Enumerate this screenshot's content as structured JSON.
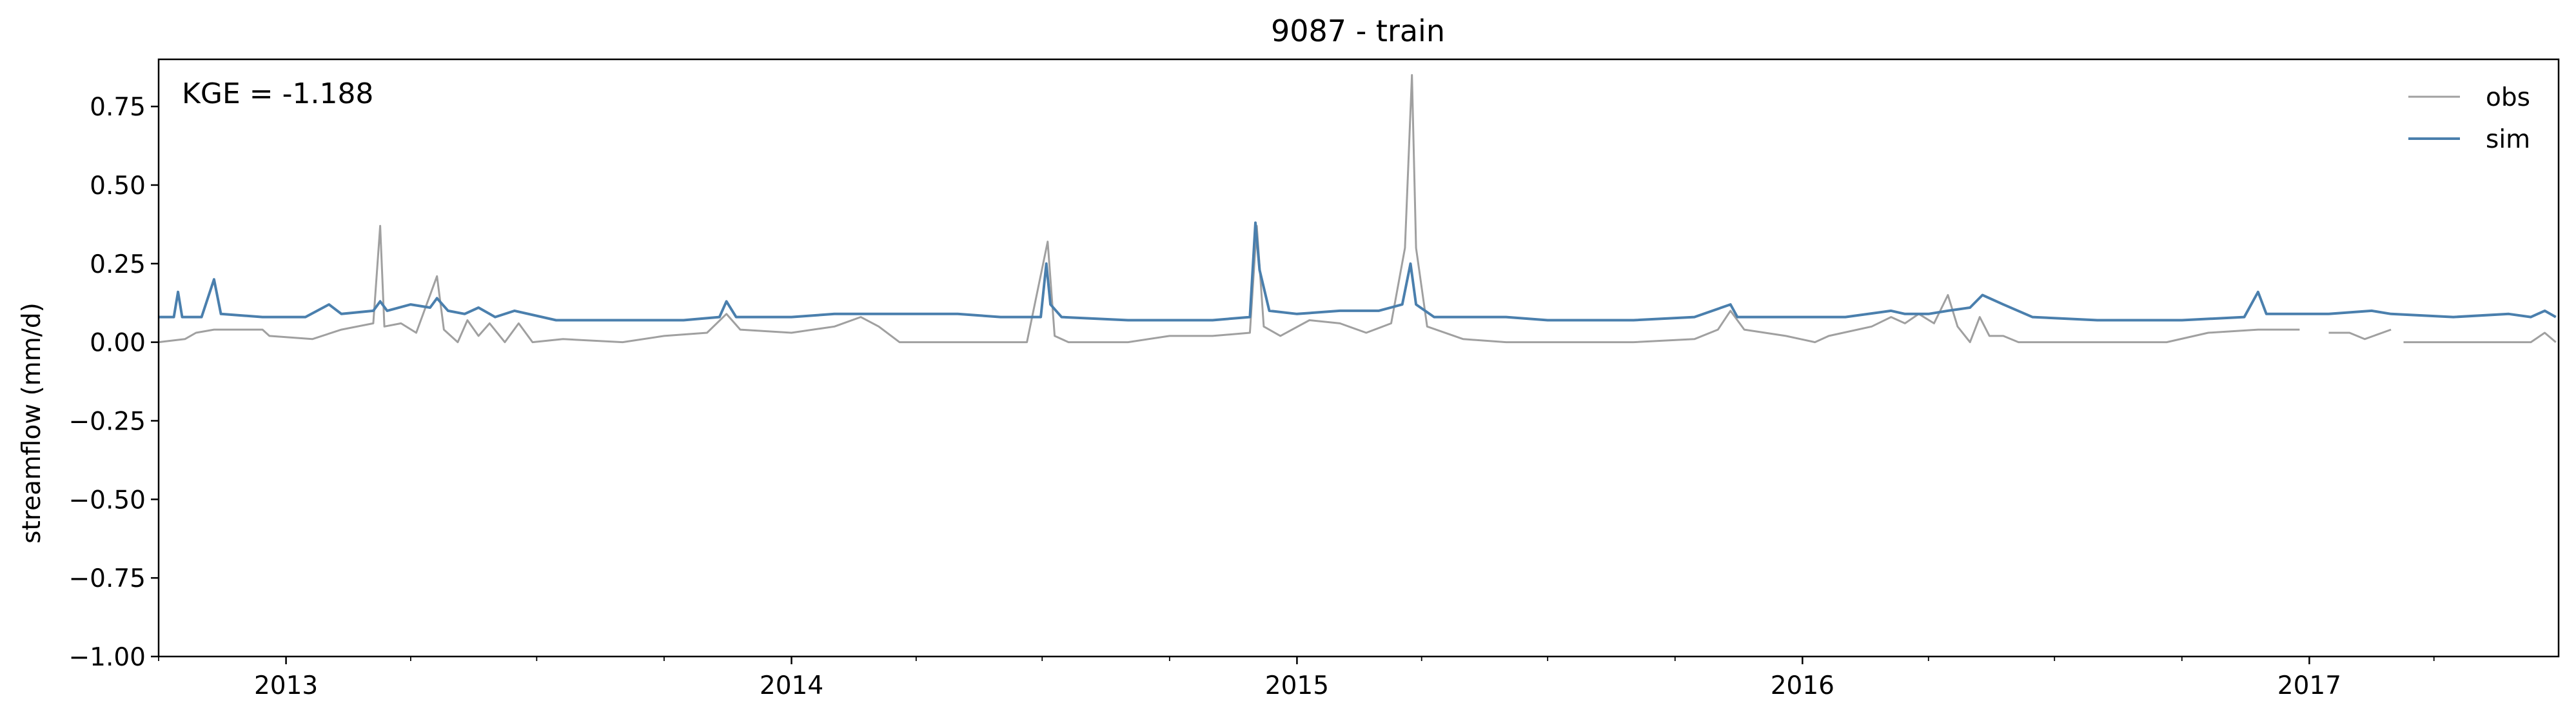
{
  "chart_data": {
    "type": "line",
    "title": "9087 - train",
    "ylabel": "streamflow (mm/d)",
    "xlabel": "",
    "annotation": "KGE = -1.188",
    "xlim": [
      "2012-10-01",
      "2017-06-30"
    ],
    "ylim": [
      -1.0,
      0.9
    ],
    "yticks": [
      -1.0,
      -0.75,
      -0.5,
      -0.25,
      0.0,
      0.25,
      0.5,
      0.75
    ],
    "ytick_labels": [
      "−1.00",
      "−0.75",
      "−0.50",
      "−0.25",
      "0.00",
      "0.25",
      "0.50",
      "0.75"
    ],
    "xticks_major": [
      "2013-01-01",
      "2014-01-01",
      "2015-01-01",
      "2016-01-01",
      "2017-01-01"
    ],
    "xtick_labels": [
      "2013",
      "2014",
      "2015",
      "2016",
      "2017"
    ],
    "grid": false,
    "legend_position": "top-right",
    "series": [
      {
        "name": "obs",
        "color": "#a0a0a0",
        "points": [
          [
            "2012-10-01",
            0.0
          ],
          [
            "2012-10-20",
            0.01
          ],
          [
            "2012-10-28",
            0.03
          ],
          [
            "2012-11-10",
            0.04
          ],
          [
            "2012-12-15",
            0.04
          ],
          [
            "2012-12-20",
            0.02
          ],
          [
            "2013-01-20",
            0.01
          ],
          [
            "2013-02-10",
            0.04
          ],
          [
            "2013-03-05",
            0.06
          ],
          [
            "2013-03-10",
            0.37
          ],
          [
            "2013-03-13",
            0.05
          ],
          [
            "2013-03-25",
            0.06
          ],
          [
            "2013-04-05",
            0.03
          ],
          [
            "2013-04-20",
            0.21
          ],
          [
            "2013-04-25",
            0.04
          ],
          [
            "2013-05-05",
            0.0
          ],
          [
            "2013-05-12",
            0.07
          ],
          [
            "2013-05-20",
            0.02
          ],
          [
            "2013-05-28",
            0.06
          ],
          [
            "2013-06-08",
            0.0
          ],
          [
            "2013-06-18",
            0.06
          ],
          [
            "2013-06-28",
            0.0
          ],
          [
            "2013-07-20",
            0.01
          ],
          [
            "2013-09-01",
            0.0
          ],
          [
            "2013-10-01",
            0.02
          ],
          [
            "2013-11-01",
            0.03
          ],
          [
            "2013-11-15",
            0.09
          ],
          [
            "2013-11-25",
            0.04
          ],
          [
            "2014-01-01",
            0.03
          ],
          [
            "2014-02-01",
            0.05
          ],
          [
            "2014-02-20",
            0.08
          ],
          [
            "2014-03-05",
            0.05
          ],
          [
            "2014-03-20",
            0.0
          ],
          [
            "2014-04-15",
            0.0
          ],
          [
            "2014-05-15",
            0.0
          ],
          [
            "2014-06-20",
            0.0
          ],
          [
            "2014-07-05",
            0.32
          ],
          [
            "2014-07-10",
            0.02
          ],
          [
            "2014-07-20",
            0.0
          ],
          [
            "2014-09-01",
            0.0
          ],
          [
            "2014-10-01",
            0.02
          ],
          [
            "2014-11-01",
            0.02
          ],
          [
            "2014-11-28",
            0.03
          ],
          [
            "2014-12-03",
            0.37
          ],
          [
            "2014-12-08",
            0.05
          ],
          [
            "2014-12-20",
            0.02
          ],
          [
            "2015-01-10",
            0.07
          ],
          [
            "2015-02-01",
            0.06
          ],
          [
            "2015-02-20",
            0.03
          ],
          [
            "2015-03-10",
            0.06
          ],
          [
            "2015-03-20",
            0.3
          ],
          [
            "2015-03-25",
            0.85
          ],
          [
            "2015-03-28",
            0.3
          ],
          [
            "2015-04-05",
            0.05
          ],
          [
            "2015-05-01",
            0.01
          ],
          [
            "2015-06-01",
            0.0
          ],
          [
            "2015-07-01",
            0.0
          ],
          [
            "2015-08-01",
            0.0
          ],
          [
            "2015-09-01",
            0.0
          ],
          [
            "2015-10-15",
            0.01
          ],
          [
            "2015-11-01",
            0.04
          ],
          [
            "2015-11-10",
            0.1
          ],
          [
            "2015-11-20",
            0.04
          ],
          [
            "2015-12-20",
            0.02
          ],
          [
            "2016-01-10",
            0.0
          ],
          [
            "2016-01-20",
            0.02
          ],
          [
            "2016-02-20",
            0.05
          ],
          [
            "2016-03-05",
            0.08
          ],
          [
            "2016-03-15",
            0.06
          ],
          [
            "2016-03-25",
            0.09
          ],
          [
            "2016-04-05",
            0.06
          ],
          [
            "2016-04-15",
            0.15
          ],
          [
            "2016-04-22",
            0.05
          ],
          [
            "2016-05-01",
            0.0
          ],
          [
            "2016-05-08",
            0.08
          ],
          [
            "2016-05-15",
            0.02
          ],
          [
            "2016-05-25",
            0.02
          ],
          [
            "2016-06-05",
            0.0
          ],
          [
            "2016-07-10",
            0.0
          ],
          [
            "2016-08-20",
            0.0
          ],
          [
            "2016-09-20",
            0.0
          ],
          [
            "2016-10-20",
            0.03
          ],
          [
            "2016-11-25",
            0.04
          ],
          [
            "2016-12-25",
            0.04
          ],
          [
            null,
            null
          ],
          [
            "2017-01-15",
            0.03
          ],
          [
            "2017-01-30",
            0.03
          ],
          [
            "2017-02-10",
            0.01
          ],
          [
            "2017-03-01",
            0.04
          ],
          [
            null,
            null
          ],
          [
            "2017-03-10",
            0.0
          ],
          [
            "2017-04-15",
            0.0
          ],
          [
            "2017-06-10",
            0.0
          ],
          [
            "2017-06-20",
            0.03
          ],
          [
            "2017-06-28",
            0.0
          ]
        ]
      },
      {
        "name": "sim",
        "color": "#4a7fad",
        "points": [
          [
            "2012-10-01",
            0.08
          ],
          [
            "2012-10-12",
            0.08
          ],
          [
            "2012-10-15",
            0.16
          ],
          [
            "2012-10-18",
            0.08
          ],
          [
            "2012-11-01",
            0.08
          ],
          [
            "2012-11-10",
            0.2
          ],
          [
            "2012-11-15",
            0.09
          ],
          [
            "2012-12-15",
            0.08
          ],
          [
            "2013-01-15",
            0.08
          ],
          [
            "2013-02-01",
            0.12
          ],
          [
            "2013-02-10",
            0.09
          ],
          [
            "2013-03-05",
            0.1
          ],
          [
            "2013-03-10",
            0.13
          ],
          [
            "2013-03-15",
            0.1
          ],
          [
            "2013-04-01",
            0.12
          ],
          [
            "2013-04-15",
            0.11
          ],
          [
            "2013-04-20",
            0.14
          ],
          [
            "2013-04-28",
            0.1
          ],
          [
            "2013-05-10",
            0.09
          ],
          [
            "2013-05-20",
            0.11
          ],
          [
            "2013-06-01",
            0.08
          ],
          [
            "2013-06-15",
            0.1
          ],
          [
            "2013-07-15",
            0.07
          ],
          [
            "2013-09-01",
            0.07
          ],
          [
            "2013-10-15",
            0.07
          ],
          [
            "2013-11-10",
            0.08
          ],
          [
            "2013-11-15",
            0.13
          ],
          [
            "2013-11-22",
            0.08
          ],
          [
            "2014-01-01",
            0.08
          ],
          [
            "2014-02-01",
            0.09
          ],
          [
            "2014-03-01",
            0.09
          ],
          [
            "2014-04-01",
            0.09
          ],
          [
            "2014-05-01",
            0.09
          ],
          [
            "2014-06-01",
            0.08
          ],
          [
            "2014-06-30",
            0.08
          ],
          [
            "2014-07-04",
            0.25
          ],
          [
            "2014-07-07",
            0.12
          ],
          [
            "2014-07-15",
            0.08
          ],
          [
            "2014-09-01",
            0.07
          ],
          [
            "2014-10-01",
            0.07
          ],
          [
            "2014-11-01",
            0.07
          ],
          [
            "2014-11-28",
            0.08
          ],
          [
            "2014-12-02",
            0.38
          ],
          [
            "2014-12-05",
            0.23
          ],
          [
            "2014-12-12",
            0.1
          ],
          [
            "2015-01-01",
            0.09
          ],
          [
            "2015-02-01",
            0.1
          ],
          [
            "2015-03-01",
            0.1
          ],
          [
            "2015-03-18",
            0.12
          ],
          [
            "2015-03-24",
            0.25
          ],
          [
            "2015-03-28",
            0.12
          ],
          [
            "2015-04-10",
            0.08
          ],
          [
            "2015-05-01",
            0.08
          ],
          [
            "2015-06-01",
            0.08
          ],
          [
            "2015-07-01",
            0.07
          ],
          [
            "2015-08-01",
            0.07
          ],
          [
            "2015-09-01",
            0.07
          ],
          [
            "2015-10-15",
            0.08
          ],
          [
            "2015-11-10",
            0.12
          ],
          [
            "2015-11-15",
            0.08
          ],
          [
            "2015-12-20",
            0.08
          ],
          [
            "2016-01-01",
            0.08
          ],
          [
            "2016-02-01",
            0.08
          ],
          [
            "2016-03-05",
            0.1
          ],
          [
            "2016-03-15",
            0.09
          ],
          [
            "2016-04-01",
            0.09
          ],
          [
            "2016-04-15",
            0.1
          ],
          [
            "2016-05-01",
            0.11
          ],
          [
            "2016-05-10",
            0.15
          ],
          [
            "2016-05-25",
            0.12
          ],
          [
            "2016-06-15",
            0.08
          ],
          [
            "2016-08-01",
            0.07
          ],
          [
            "2016-10-01",
            0.07
          ],
          [
            "2016-11-15",
            0.08
          ],
          [
            "2016-11-25",
            0.16
          ],
          [
            "2016-12-01",
            0.09
          ],
          [
            "2017-01-15",
            0.09
          ],
          [
            "2017-02-15",
            0.1
          ],
          [
            "2017-03-01",
            0.09
          ],
          [
            "2017-04-15",
            0.08
          ],
          [
            "2017-05-25",
            0.09
          ],
          [
            "2017-06-10",
            0.08
          ],
          [
            "2017-06-20",
            0.1
          ],
          [
            "2017-06-28",
            0.08
          ]
        ]
      }
    ]
  }
}
